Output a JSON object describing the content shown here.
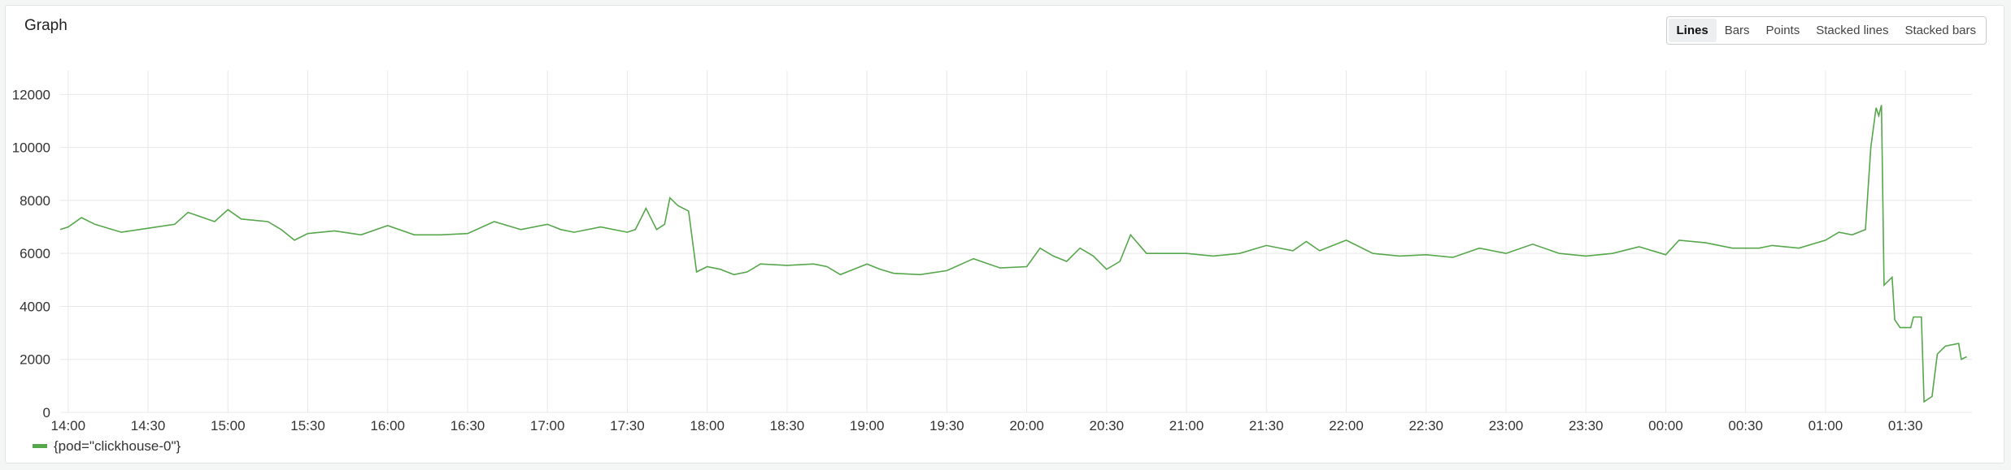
{
  "header": {
    "title": "Graph",
    "buttons": [
      "Lines",
      "Bars",
      "Points",
      "Stacked lines",
      "Stacked bars"
    ],
    "active": "Lines"
  },
  "chart_data": {
    "type": "line",
    "x": [
      "13:57",
      "14:00",
      "14:05",
      "14:10",
      "14:20",
      "14:30",
      "14:40",
      "14:45",
      "14:55",
      "15:00",
      "15:05",
      "15:15",
      "15:20",
      "15:25",
      "15:30",
      "15:40",
      "15:50",
      "16:00",
      "16:10",
      "16:20",
      "16:30",
      "16:40",
      "16:50",
      "17:00",
      "17:05",
      "17:10",
      "17:20",
      "17:30",
      "17:33",
      "17:37",
      "17:41",
      "17:44",
      "17:46",
      "17:49",
      "17:53",
      "17:56",
      "18:00",
      "18:05",
      "18:10",
      "18:15",
      "18:20",
      "18:30",
      "18:40",
      "18:45",
      "18:50",
      "18:55",
      "19:00",
      "19:05",
      "19:10",
      "19:20",
      "19:30",
      "19:40",
      "19:50",
      "20:00",
      "20:05",
      "20:10",
      "20:15",
      "20:20",
      "20:25",
      "20:30",
      "20:35",
      "20:39",
      "20:45",
      "21:00",
      "21:10",
      "21:20",
      "21:30",
      "21:40",
      "21:45",
      "21:50",
      "22:00",
      "22:10",
      "22:20",
      "22:30",
      "22:40",
      "22:50",
      "23:00",
      "23:10",
      "23:20",
      "23:30",
      "23:40",
      "23:50",
      "00:00",
      "00:05",
      "00:15",
      "00:25",
      "00:35",
      "00:40",
      "00:50",
      "01:00",
      "01:05",
      "01:10",
      "01:15",
      "01:17",
      "01:19",
      "01:20",
      "01:21",
      "01:22",
      "01:25",
      "01:26",
      "01:28",
      "01:32",
      "01:33",
      "01:36",
      "01:37",
      "01:40",
      "01:42",
      "01:45",
      "01:50",
      "01:51",
      "01:53"
    ],
    "series": [
      {
        "name": "{pod=\"clickhouse-0\"}",
        "color": "#56a64b",
        "values": [
          6900,
          7000,
          7350,
          7100,
          6800,
          6950,
          7100,
          7550,
          7200,
          7650,
          7300,
          7200,
          6900,
          6500,
          6750,
          6850,
          6700,
          7050,
          6700,
          6700,
          6750,
          7200,
          6900,
          7100,
          6900,
          6800,
          7000,
          6800,
          6900,
          7700,
          6900,
          7100,
          8100,
          7800,
          7600,
          5300,
          5500,
          5400,
          5200,
          5300,
          5600,
          5550,
          5600,
          5500,
          5200,
          5400,
          5600,
          5400,
          5250,
          5200,
          5350,
          5800,
          5450,
          5500,
          6200,
          5900,
          5700,
          6200,
          5900,
          5400,
          5700,
          6700,
          6000,
          6000,
          5900,
          6000,
          6300,
          6100,
          6450,
          6100,
          6500,
          6000,
          5900,
          5950,
          5850,
          6200,
          6000,
          6350,
          6000,
          5900,
          6000,
          6250,
          5950,
          6500,
          6400,
          6200,
          6200,
          6300,
          6200,
          6500,
          6800,
          6700,
          6900,
          10000,
          11500,
          11200,
          11600,
          4800,
          5100,
          3500,
          3200,
          3200,
          3600,
          3600,
          400,
          600,
          2200,
          2500,
          2600,
          2000,
          2100
        ]
      }
    ],
    "xlim": [
      "13:57",
      "01:55"
    ],
    "xticks": [
      "14:00",
      "14:30",
      "15:00",
      "15:30",
      "16:00",
      "16:30",
      "17:00",
      "17:30",
      "18:00",
      "18:30",
      "19:00",
      "19:30",
      "20:00",
      "20:30",
      "21:00",
      "21:30",
      "22:00",
      "22:30",
      "23:00",
      "23:30",
      "00:00",
      "00:30",
      "01:00",
      "01:30"
    ],
    "ylim": [
      0,
      12900
    ],
    "yticks": [
      0,
      2000,
      4000,
      6000,
      8000,
      10000,
      12000
    ],
    "grid": true,
    "legend": "bottom-left"
  }
}
